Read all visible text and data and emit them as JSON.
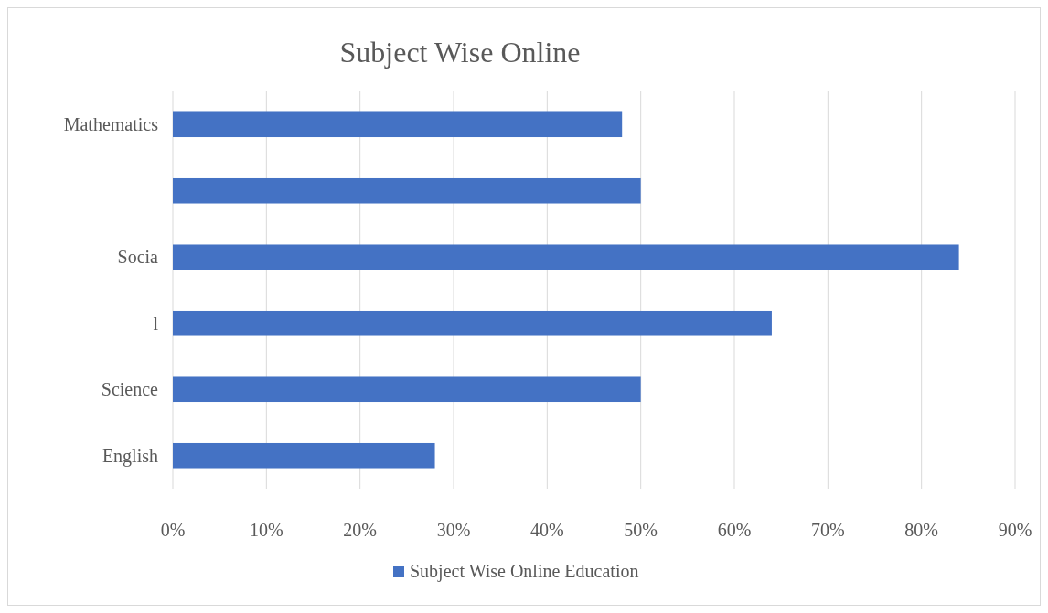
{
  "chart_data": {
    "type": "bar",
    "orientation": "horizontal",
    "title": "Subject Wise Online",
    "categories": [
      "Mathematics",
      null,
      "Socia",
      "l",
      "Science",
      "English"
    ],
    "series": [
      {
        "name": "Subject Wise Online Education",
        "color": "#4472c4",
        "values": [
          48,
          50,
          84,
          64,
          50,
          28
        ]
      }
    ],
    "xlim": [
      0,
      90
    ],
    "xticks": [
      {
        "value": 0,
        "label": "0%"
      },
      {
        "value": 10,
        "label": "10%"
      },
      {
        "value": 20,
        "label": "20%"
      },
      {
        "value": 30,
        "label": "30%"
      },
      {
        "value": 40,
        "label": "40%"
      },
      {
        "value": 50,
        "label": "50%"
      },
      {
        "value": 60,
        "label": "60%"
      },
      {
        "value": 70,
        "label": "70%"
      },
      {
        "value": 80,
        "label": "80%"
      },
      {
        "value": 90,
        "label": "90%"
      }
    ],
    "grid": "x",
    "legend": "bottom"
  }
}
